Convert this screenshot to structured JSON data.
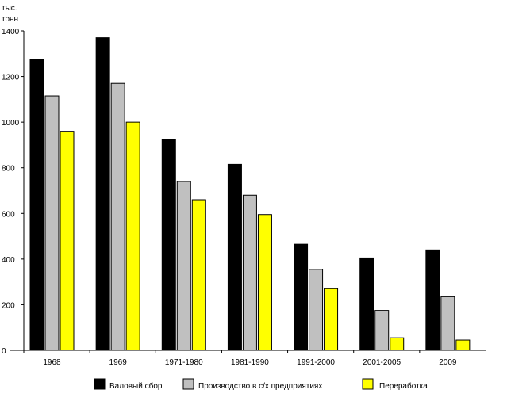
{
  "chart_data": {
    "type": "bar",
    "title": "",
    "xlabel": "",
    "ylabel": "тыс. тонн",
    "ylabel_lines": [
      "тыс.",
      "тонн"
    ],
    "ylim": [
      0,
      1400
    ],
    "yticks": [
      "0",
      "200",
      "400",
      "600",
      "800",
      "1000",
      "1200",
      "1400"
    ],
    "grid": false,
    "legend_position": "bottom",
    "categories": [
      "1968",
      "1969",
      "1971-1980",
      "1981-1990",
      "1991-2000",
      "2001-2005",
      "2009"
    ],
    "series": [
      {
        "name": "Валовый сбор",
        "color": "#000000",
        "values": [
          1275,
          1370,
          925,
          815,
          465,
          405,
          440
        ]
      },
      {
        "name": "Производство в с/х предприятиях",
        "color": "#c0c0c0",
        "values": [
          1115,
          1170,
          740,
          680,
          355,
          175,
          235
        ]
      },
      {
        "name": "Переработка",
        "color": "#ffff00",
        "values": [
          960,
          1000,
          660,
          595,
          270,
          55,
          45
        ]
      }
    ]
  }
}
